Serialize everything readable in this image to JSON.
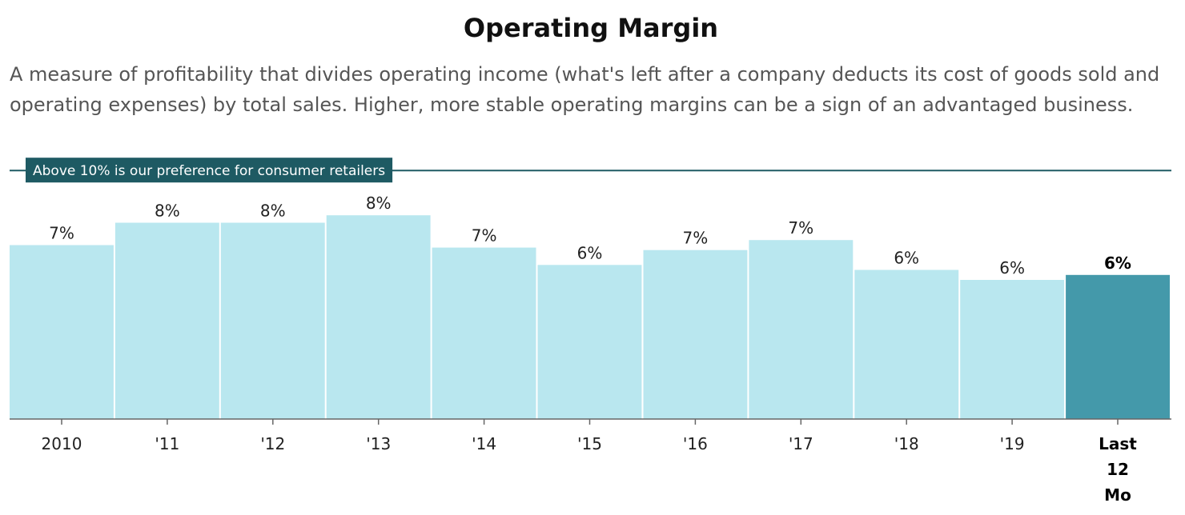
{
  "title": "Operating Margin",
  "subtitle": "A measure of profitability that divides operating income (what's left after a company deducts its cost of goods sold and operating expenses) by total sales. Higher, more stable operating margins can be a sign of an advantaged business.",
  "colors": {
    "bar": "#b9e7ef",
    "bar_highlight": "#4499aa",
    "reference": "#1e5a63",
    "axis": "#666666"
  },
  "chart_data": {
    "type": "bar",
    "categories": [
      "2010",
      "'11",
      "'12",
      "'13",
      "'14",
      "'15",
      "'16",
      "'17",
      "'18",
      "'19",
      "Last 12 Mo"
    ],
    "values": [
      7.0,
      7.9,
      7.9,
      8.2,
      6.9,
      6.2,
      6.8,
      7.2,
      6.0,
      5.6,
      5.8
    ],
    "data_labels": [
      "7%",
      "8%",
      "8%",
      "8%",
      "7%",
      "6%",
      "7%",
      "7%",
      "6%",
      "6%",
      "6%"
    ],
    "highlight_index": 10,
    "ylim": [
      0,
      13
    ],
    "reference_line": {
      "value": 10,
      "label": "Above 10% is our preference for consumer retailers"
    },
    "grid": false,
    "xlabel": "",
    "ylabel": ""
  }
}
